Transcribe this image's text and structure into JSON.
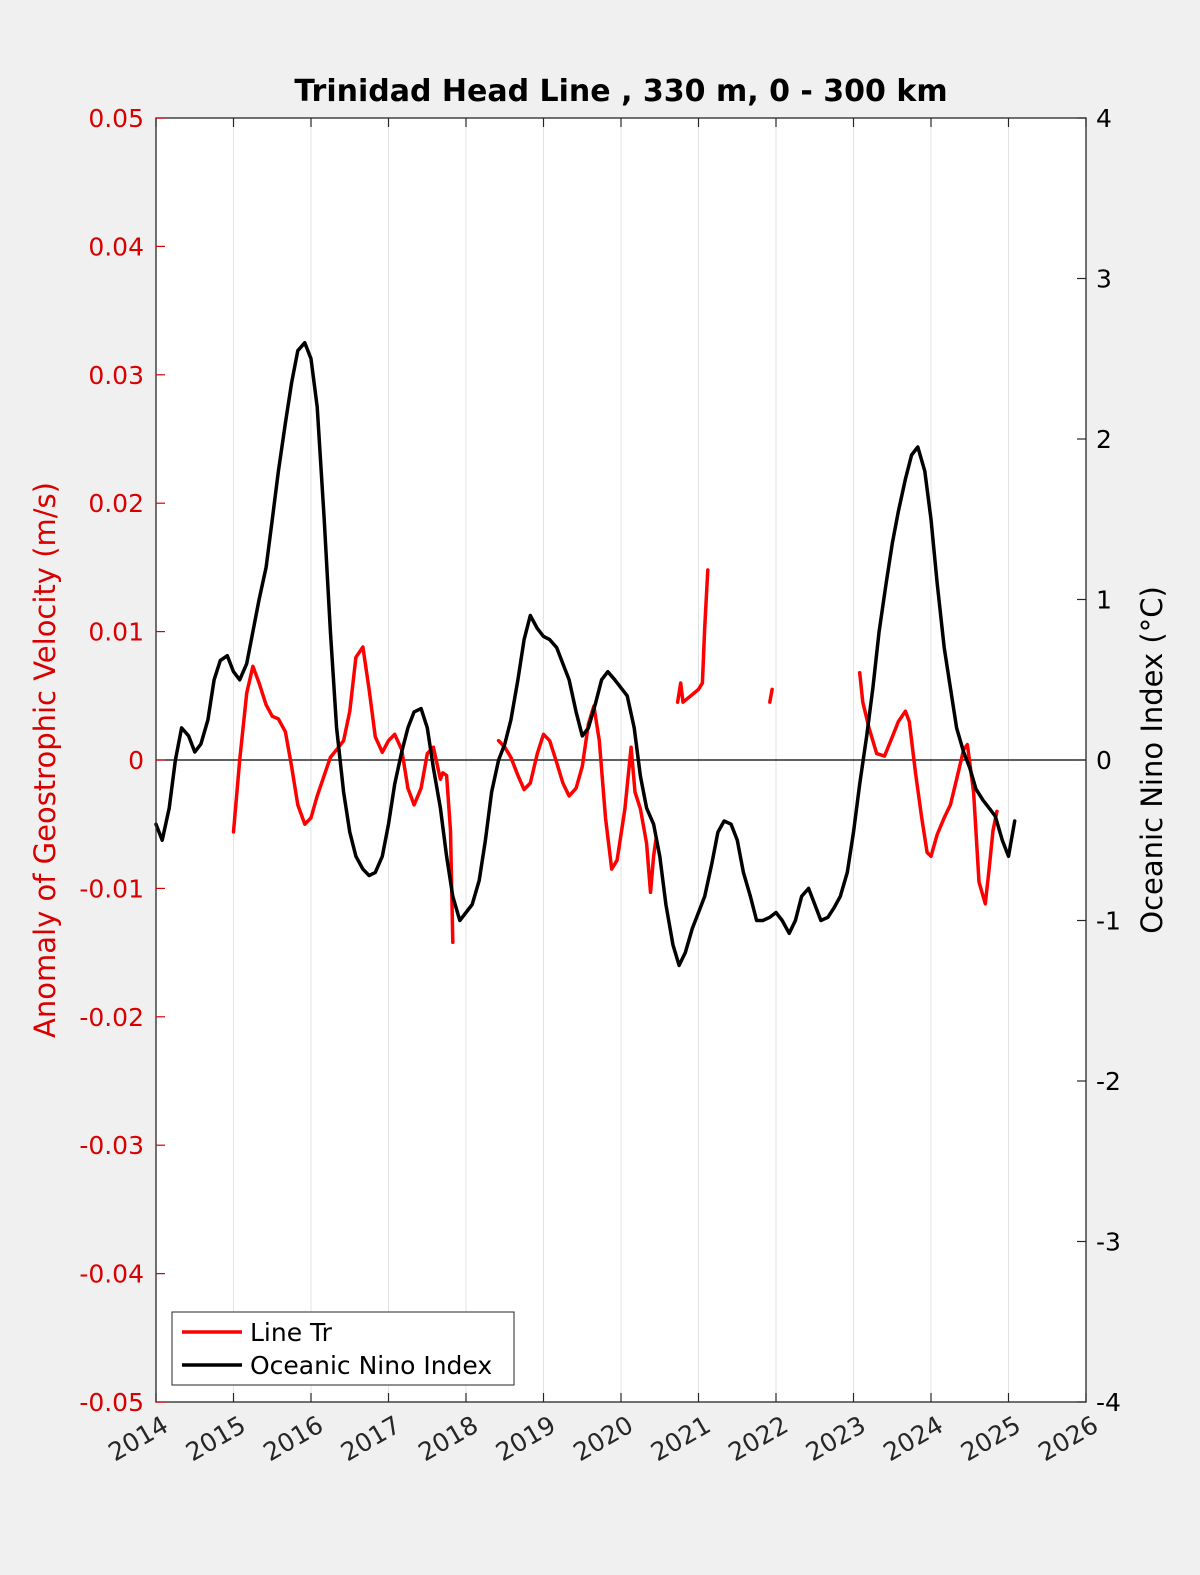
{
  "chart_data": {
    "type": "line",
    "title": "Trinidad Head Line , 330 m, 0 - 300 km",
    "ylabel_left": "Anomaly of Geostrophic Velocity (m/s)",
    "ylabel_right": "Oceanic Nino Index (°C)",
    "xlim": [
      2014,
      2026
    ],
    "ylim_left": [
      -0.05,
      0.05
    ],
    "ylim_right": [
      -4,
      4
    ],
    "x_ticks": [
      "2014",
      "2015",
      "2016",
      "2017",
      "2018",
      "2019",
      "2020",
      "2021",
      "2022",
      "2023",
      "2024",
      "2025",
      "2026"
    ],
    "y_left_ticks": [
      "0.05",
      "0.04",
      "0.03",
      "0.02",
      "0.01",
      "0",
      "-0.01",
      "-0.02",
      "-0.03",
      "-0.04",
      "-0.05"
    ],
    "y_right_ticks": [
      "4",
      "3",
      "2",
      "1",
      "0",
      "-1",
      "-2",
      "-3",
      "-4"
    ],
    "grid": "x-only",
    "legend_position": "bottom-left",
    "colors": {
      "line_tr": "#ff0000",
      "oni": "#000000",
      "left_axis": "#d90000"
    },
    "series": [
      {
        "name": "Line Tr",
        "axis": "left",
        "segments": [
          [
            [
              2015.0,
              -0.0056
            ],
            [
              2015.08,
              0.0
            ],
            [
              2015.17,
              0.0052
            ],
            [
              2015.25,
              0.0073
            ],
            [
              2015.33,
              0.006
            ],
            [
              2015.42,
              0.0043
            ],
            [
              2015.5,
              0.0034
            ],
            [
              2015.58,
              0.0032
            ],
            [
              2015.67,
              0.0022
            ],
            [
              2015.75,
              -0.0005
            ],
            [
              2015.83,
              -0.0035
            ],
            [
              2015.92,
              -0.005
            ],
            [
              2016.0,
              -0.0045
            ],
            [
              2016.08,
              -0.0028
            ],
            [
              2016.17,
              -0.0012
            ],
            [
              2016.25,
              0.0002
            ],
            [
              2016.33,
              0.0008
            ],
            [
              2016.42,
              0.0015
            ],
            [
              2016.5,
              0.0038
            ],
            [
              2016.58,
              0.008
            ],
            [
              2016.67,
              0.0088
            ],
            [
              2016.75,
              0.0055
            ],
            [
              2016.83,
              0.0018
            ],
            [
              2016.92,
              0.0006
            ],
            [
              2017.0,
              0.0015
            ],
            [
              2017.08,
              0.002
            ],
            [
              2017.17,
              0.0008
            ],
            [
              2017.25,
              -0.0022
            ],
            [
              2017.33,
              -0.0035
            ],
            [
              2017.42,
              -0.0022
            ],
            [
              2017.5,
              0.0005
            ],
            [
              2017.58,
              0.001
            ],
            [
              2017.67,
              -0.0015
            ],
            [
              2017.7,
              -0.001
            ],
            [
              2017.75,
              -0.0012
            ],
            [
              2017.8,
              -0.0055
            ],
            [
              2017.83,
              -0.0142
            ]
          ],
          [
            [
              2018.42,
              0.0015
            ],
            [
              2018.5,
              0.001
            ],
            [
              2018.58,
              0.0002
            ],
            [
              2018.67,
              -0.0012
            ],
            [
              2018.75,
              -0.0023
            ],
            [
              2018.83,
              -0.0018
            ],
            [
              2018.92,
              0.0005
            ],
            [
              2019.0,
              0.002
            ],
            [
              2019.08,
              0.0015
            ],
            [
              2019.17,
              -0.0002
            ],
            [
              2019.25,
              -0.0018
            ],
            [
              2019.33,
              -0.0028
            ],
            [
              2019.42,
              -0.0022
            ],
            [
              2019.5,
              -0.0005
            ],
            [
              2019.58,
              0.0028
            ],
            [
              2019.65,
              0.0042
            ],
            [
              2019.72,
              0.0015
            ],
            [
              2019.8,
              -0.0045
            ],
            [
              2019.88,
              -0.0085
            ],
            [
              2019.95,
              -0.0078
            ],
            [
              2020.05,
              -0.0038
            ],
            [
              2020.13,
              0.001
            ],
            [
              2020.18,
              -0.0025
            ],
            [
              2020.25,
              -0.0038
            ],
            [
              2020.33,
              -0.0065
            ],
            [
              2020.38,
              -0.0103
            ],
            [
              2020.42,
              -0.0075
            ],
            [
              2020.45,
              -0.0062
            ]
          ],
          [
            [
              2020.73,
              0.0045
            ],
            [
              2020.77,
              0.006
            ],
            [
              2020.8,
              0.0045
            ],
            [
              2020.9,
              0.005
            ],
            [
              2021.0,
              0.0055
            ],
            [
              2021.05,
              0.006
            ],
            [
              2021.08,
              0.0103
            ],
            [
              2021.12,
              0.0148
            ]
          ],
          [
            [
              2021.92,
              0.0045
            ],
            [
              2021.95,
              0.0055
            ]
          ],
          [
            [
              2023.08,
              0.0068
            ],
            [
              2023.12,
              0.0045
            ],
            [
              2023.2,
              0.0025
            ],
            [
              2023.3,
              0.0005
            ],
            [
              2023.4,
              0.0003
            ],
            [
              2023.5,
              0.0018
            ],
            [
              2023.58,
              0.003
            ],
            [
              2023.67,
              0.0038
            ],
            [
              2023.72,
              0.003
            ],
            [
              2023.8,
              -0.001
            ],
            [
              2023.88,
              -0.0045
            ],
            [
              2023.95,
              -0.0072
            ],
            [
              2024.0,
              -0.0075
            ],
            [
              2024.08,
              -0.0058
            ],
            [
              2024.17,
              -0.0045
            ],
            [
              2024.25,
              -0.0035
            ],
            [
              2024.33,
              -0.0015
            ],
            [
              2024.42,
              0.0008
            ],
            [
              2024.47,
              0.0012
            ],
            [
              2024.55,
              -0.0025
            ],
            [
              2024.62,
              -0.0095
            ],
            [
              2024.7,
              -0.0112
            ],
            [
              2024.75,
              -0.0085
            ],
            [
              2024.8,
              -0.0055
            ],
            [
              2024.85,
              -0.004
            ]
          ]
        ]
      },
      {
        "name": "Oceanic Nino Index",
        "axis": "right",
        "points": [
          [
            2014.0,
            -0.4
          ],
          [
            2014.08,
            -0.5
          ],
          [
            2014.17,
            -0.3
          ],
          [
            2014.25,
            0.0
          ],
          [
            2014.33,
            0.2
          ],
          [
            2014.42,
            0.15
          ],
          [
            2014.5,
            0.05
          ],
          [
            2014.58,
            0.1
          ],
          [
            2014.67,
            0.25
          ],
          [
            2014.75,
            0.5
          ],
          [
            2014.83,
            0.62
          ],
          [
            2014.92,
            0.65
          ],
          [
            2015.0,
            0.55
          ],
          [
            2015.08,
            0.5
          ],
          [
            2015.17,
            0.6
          ],
          [
            2015.25,
            0.8
          ],
          [
            2015.33,
            1.0
          ],
          [
            2015.42,
            1.2
          ],
          [
            2015.5,
            1.5
          ],
          [
            2015.58,
            1.8
          ],
          [
            2015.67,
            2.1
          ],
          [
            2015.75,
            2.35
          ],
          [
            2015.83,
            2.55
          ],
          [
            2015.92,
            2.6
          ],
          [
            2016.0,
            2.5
          ],
          [
            2016.08,
            2.2
          ],
          [
            2016.17,
            1.5
          ],
          [
            2016.25,
            0.8
          ],
          [
            2016.33,
            0.2
          ],
          [
            2016.42,
            -0.2
          ],
          [
            2016.5,
            -0.45
          ],
          [
            2016.58,
            -0.6
          ],
          [
            2016.67,
            -0.68
          ],
          [
            2016.75,
            -0.72
          ],
          [
            2016.83,
            -0.7
          ],
          [
            2016.92,
            -0.6
          ],
          [
            2017.0,
            -0.4
          ],
          [
            2017.08,
            -0.15
          ],
          [
            2017.17,
            0.05
          ],
          [
            2017.25,
            0.2
          ],
          [
            2017.33,
            0.3
          ],
          [
            2017.42,
            0.32
          ],
          [
            2017.5,
            0.2
          ],
          [
            2017.58,
            -0.05
          ],
          [
            2017.67,
            -0.3
          ],
          [
            2017.75,
            -0.6
          ],
          [
            2017.83,
            -0.85
          ],
          [
            2017.92,
            -1.0
          ],
          [
            2018.0,
            -0.95
          ],
          [
            2018.08,
            -0.9
          ],
          [
            2018.17,
            -0.75
          ],
          [
            2018.25,
            -0.5
          ],
          [
            2018.33,
            -0.2
          ],
          [
            2018.42,
            0.0
          ],
          [
            2018.5,
            0.1
          ],
          [
            2018.58,
            0.25
          ],
          [
            2018.67,
            0.5
          ],
          [
            2018.75,
            0.75
          ],
          [
            2018.83,
            0.9
          ],
          [
            2018.92,
            0.82
          ],
          [
            2019.0,
            0.77
          ],
          [
            2019.08,
            0.75
          ],
          [
            2019.17,
            0.7
          ],
          [
            2019.25,
            0.6
          ],
          [
            2019.33,
            0.5
          ],
          [
            2019.42,
            0.3
          ],
          [
            2019.5,
            0.15
          ],
          [
            2019.58,
            0.2
          ],
          [
            2019.67,
            0.35
          ],
          [
            2019.75,
            0.5
          ],
          [
            2019.83,
            0.55
          ],
          [
            2019.92,
            0.5
          ],
          [
            2020.0,
            0.45
          ],
          [
            2020.08,
            0.4
          ],
          [
            2020.17,
            0.2
          ],
          [
            2020.25,
            -0.1
          ],
          [
            2020.33,
            -0.3
          ],
          [
            2020.42,
            -0.4
          ],
          [
            2020.5,
            -0.6
          ],
          [
            2020.58,
            -0.9
          ],
          [
            2020.67,
            -1.15
          ],
          [
            2020.75,
            -1.28
          ],
          [
            2020.83,
            -1.2
          ],
          [
            2020.92,
            -1.05
          ],
          [
            2021.0,
            -0.95
          ],
          [
            2021.08,
            -0.85
          ],
          [
            2021.17,
            -0.65
          ],
          [
            2021.25,
            -0.45
          ],
          [
            2021.33,
            -0.38
          ],
          [
            2021.42,
            -0.4
          ],
          [
            2021.5,
            -0.5
          ],
          [
            2021.58,
            -0.7
          ],
          [
            2021.67,
            -0.85
          ],
          [
            2021.75,
            -1.0
          ],
          [
            2021.83,
            -1.0
          ],
          [
            2021.92,
            -0.98
          ],
          [
            2022.0,
            -0.95
          ],
          [
            2022.08,
            -1.0
          ],
          [
            2022.17,
            -1.08
          ],
          [
            2022.25,
            -1.0
          ],
          [
            2022.33,
            -0.85
          ],
          [
            2022.42,
            -0.8
          ],
          [
            2022.5,
            -0.9
          ],
          [
            2022.58,
            -1.0
          ],
          [
            2022.67,
            -0.98
          ],
          [
            2022.75,
            -0.92
          ],
          [
            2022.83,
            -0.85
          ],
          [
            2022.92,
            -0.7
          ],
          [
            2023.0,
            -0.45
          ],
          [
            2023.08,
            -0.15
          ],
          [
            2023.17,
            0.15
          ],
          [
            2023.25,
            0.45
          ],
          [
            2023.33,
            0.8
          ],
          [
            2023.42,
            1.1
          ],
          [
            2023.5,
            1.35
          ],
          [
            2023.58,
            1.55
          ],
          [
            2023.67,
            1.75
          ],
          [
            2023.75,
            1.9
          ],
          [
            2023.83,
            1.95
          ],
          [
            2023.92,
            1.8
          ],
          [
            2024.0,
            1.5
          ],
          [
            2024.08,
            1.1
          ],
          [
            2024.17,
            0.7
          ],
          [
            2024.25,
            0.45
          ],
          [
            2024.33,
            0.2
          ],
          [
            2024.42,
            0.05
          ],
          [
            2024.5,
            -0.05
          ],
          [
            2024.58,
            -0.18
          ],
          [
            2024.67,
            -0.25
          ],
          [
            2024.75,
            -0.3
          ],
          [
            2024.83,
            -0.35
          ],
          [
            2024.92,
            -0.5
          ],
          [
            2025.0,
            -0.6
          ],
          [
            2025.08,
            -0.38
          ]
        ]
      }
    ]
  },
  "legend": {
    "entries": [
      "Line Tr",
      "Oceanic Nino Index"
    ]
  }
}
